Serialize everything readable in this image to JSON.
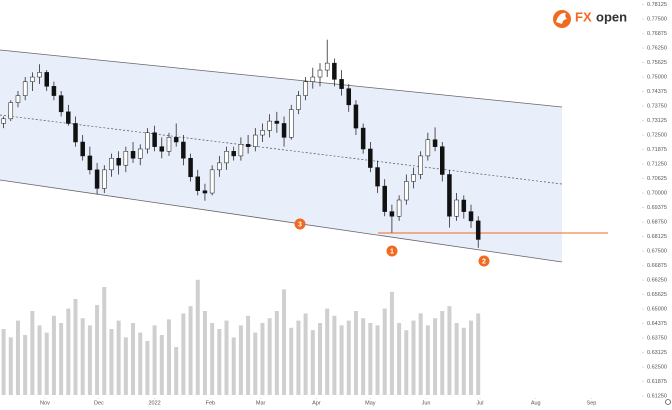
{
  "chart_data": {
    "type": "candlestick",
    "logo": [
      "FX",
      "open"
    ],
    "markers": [
      "1",
      "2",
      "3"
    ],
    "up_color": "#ffffff",
    "down_color": "#111111",
    "volume_color": "#cfcfcf",
    "marker_color": "#f26a21",
    "x": [
      8,
      12,
      16,
      20,
      24,
      28,
      32,
      36,
      40,
      44,
      48,
      52,
      56,
      60,
      64,
      68,
      72,
      76,
      80,
      84,
      88,
      92,
      96,
      100,
      104,
      108,
      112,
      116,
      120,
      124,
      128,
      132,
      136,
      140,
      144,
      148,
      152,
      156,
      160,
      164,
      168,
      172,
      176,
      180,
      184,
      188,
      192,
      196,
      200,
      204,
      208,
      212,
      216,
      220,
      224,
      228,
      232,
      236,
      240,
      244,
      248,
      252,
      256,
      260,
      264,
      268,
      272
    ],
    "open": [
      0.73,
      0.732,
      0.739,
      0.742,
      0.748,
      0.75,
      0.752,
      0.746,
      0.742,
      0.735,
      0.73,
      0.722,
      0.716,
      0.71,
      0.702,
      0.71,
      0.715,
      0.712,
      0.718,
      0.715,
      0.719,
      0.726,
      0.72,
      0.718,
      0.724,
      0.722,
      0.715,
      0.707,
      0.701,
      0.7,
      0.71,
      0.713,
      0.718,
      0.716,
      0.721,
      0.72,
      0.725,
      0.727,
      0.731,
      0.73,
      0.724,
      0.736,
      0.742,
      0.748,
      0.75,
      0.753,
      0.756,
      0.749,
      0.745,
      0.738,
      0.728,
      0.719,
      0.711,
      0.703,
      0.692,
      0.69,
      0.697,
      0.705,
      0.708,
      0.716,
      0.723,
      0.72,
      0.708,
      0.69,
      0.697,
      0.692,
      0.688
    ],
    "high": [
      0.733,
      0.74,
      0.744,
      0.75,
      0.752,
      0.7555,
      0.753,
      0.748,
      0.744,
      0.738,
      0.733,
      0.725,
      0.72,
      0.713,
      0.712,
      0.717,
      0.718,
      0.72,
      0.722,
      0.721,
      0.728,
      0.729,
      0.724,
      0.726,
      0.73,
      0.725,
      0.717,
      0.71,
      0.704,
      0.712,
      0.716,
      0.72,
      0.72,
      0.724,
      0.725,
      0.728,
      0.73,
      0.734,
      0.735,
      0.733,
      0.738,
      0.744,
      0.75,
      0.754,
      0.756,
      0.7661,
      0.758,
      0.753,
      0.747,
      0.74,
      0.73,
      0.722,
      0.714,
      0.706,
      0.695,
      0.699,
      0.708,
      0.711,
      0.718,
      0.726,
      0.7283,
      0.722,
      0.71,
      0.7,
      0.699,
      0.695,
      0.69
    ],
    "low": [
      0.728,
      0.731,
      0.737,
      0.74,
      0.744,
      0.747,
      0.744,
      0.74,
      0.733,
      0.729,
      0.72,
      0.714,
      0.708,
      0.6995,
      0.7,
      0.707,
      0.708,
      0.709,
      0.713,
      0.712,
      0.717,
      0.718,
      0.715,
      0.716,
      0.72,
      0.712,
      0.705,
      0.699,
      0.6967,
      0.699,
      0.707,
      0.71,
      0.714,
      0.714,
      0.717,
      0.718,
      0.722,
      0.724,
      0.726,
      0.72,
      0.723,
      0.734,
      0.74,
      0.745,
      0.746,
      0.75,
      0.746,
      0.742,
      0.735,
      0.725,
      0.717,
      0.709,
      0.7,
      0.69,
      0.6829,
      0.688,
      0.695,
      0.702,
      0.706,
      0.714,
      0.718,
      0.705,
      0.6851,
      0.688,
      0.689,
      0.685,
      0.6764
    ],
    "close": [
      0.732,
      0.739,
      0.742,
      0.748,
      0.75,
      0.752,
      0.746,
      0.742,
      0.735,
      0.73,
      0.722,
      0.716,
      0.71,
      0.702,
      0.71,
      0.715,
      0.712,
      0.718,
      0.715,
      0.719,
      0.726,
      0.72,
      0.718,
      0.724,
      0.722,
      0.715,
      0.707,
      0.701,
      0.7,
      0.71,
      0.713,
      0.718,
      0.716,
      0.721,
      0.72,
      0.725,
      0.727,
      0.731,
      0.73,
      0.724,
      0.736,
      0.742,
      0.748,
      0.75,
      0.753,
      0.756,
      0.749,
      0.745,
      0.738,
      0.728,
      0.719,
      0.711,
      0.703,
      0.692,
      0.69,
      0.697,
      0.705,
      0.708,
      0.716,
      0.723,
      0.72,
      0.708,
      0.69,
      0.697,
      0.692,
      0.688,
      0.68
    ],
    "volume": [
      55,
      48,
      62,
      50,
      70,
      58,
      52,
      66,
      60,
      72,
      80,
      64,
      58,
      75,
      90,
      55,
      62,
      48,
      60,
      52,
      45,
      58,
      50,
      63,
      40,
      68,
      74,
      96,
      70,
      60,
      55,
      62,
      48,
      58,
      66,
      52,
      60,
      64,
      70,
      88,
      56,
      62,
      68,
      54,
      60,
      72,
      66,
      58,
      62,
      70,
      64,
      60,
      58,
      72,
      86,
      60,
      54,
      62,
      68,
      58,
      64,
      70,
      74,
      60,
      56,
      62,
      68
    ],
    "xlim": [
      6,
      362
    ],
    "ylim": [
      0.6065,
      0.7832
    ],
    "xticks": [
      {
        "value": 31,
        "label": "Nov"
      },
      {
        "value": 61,
        "label": "Dec"
      },
      {
        "value": 92,
        "label": "2022"
      },
      {
        "value": 123,
        "label": "Feb"
      },
      {
        "value": 151,
        "label": "Mar"
      },
      {
        "value": 182,
        "label": "Apr"
      },
      {
        "value": 212,
        "label": "May"
      },
      {
        "value": 243,
        "label": "Jun"
      },
      {
        "value": 273,
        "label": "Jul"
      },
      {
        "value": 304,
        "label": "Aug"
      },
      {
        "value": 335,
        "label": "Sep"
      }
    ],
    "yticks": [
      {
        "value": 0.78125,
        "label": "0.78125"
      },
      {
        "value": 0.775,
        "label": "0.77500"
      },
      {
        "value": 0.76875,
        "label": "0.76875"
      },
      {
        "value": 0.7625,
        "label": "0.76250"
      },
      {
        "value": 0.75625,
        "label": "0.75625"
      },
      {
        "value": 0.75,
        "label": "0.75000"
      },
      {
        "value": 0.74375,
        "label": "0.74375"
      },
      {
        "value": 0.7375,
        "label": "0.73750"
      },
      {
        "value": 0.73125,
        "label": "0.73125"
      },
      {
        "value": 0.725,
        "label": "0.72500"
      },
      {
        "value": 0.71875,
        "label": "0.71875"
      },
      {
        "value": 0.7125,
        "label": "0.71250"
      },
      {
        "value": 0.70625,
        "label": "0.70625"
      },
      {
        "value": 0.7,
        "label": "0.70000"
      },
      {
        "value": 0.69375,
        "label": "0.69375"
      },
      {
        "value": 0.6875,
        "label": "0.68750"
      },
      {
        "value": 0.68125,
        "label": "0.68125"
      },
      {
        "value": 0.675,
        "label": "0.67500"
      },
      {
        "value": 0.66875,
        "label": "0.66875"
      },
      {
        "value": 0.6625,
        "label": "0.66250"
      },
      {
        "value": 0.65625,
        "label": "0.65625"
      },
      {
        "value": 0.65,
        "label": "0.65000"
      },
      {
        "value": 0.64375,
        "label": "0.64375"
      },
      {
        "value": 0.6375,
        "label": "0.63750"
      },
      {
        "value": 0.63125,
        "label": "0.63125"
      },
      {
        "value": 0.625,
        "label": "0.62500"
      },
      {
        "value": 0.61875,
        "label": "0.61875"
      },
      {
        "value": 0.6125,
        "label": "0.61250"
      }
    ]
  }
}
